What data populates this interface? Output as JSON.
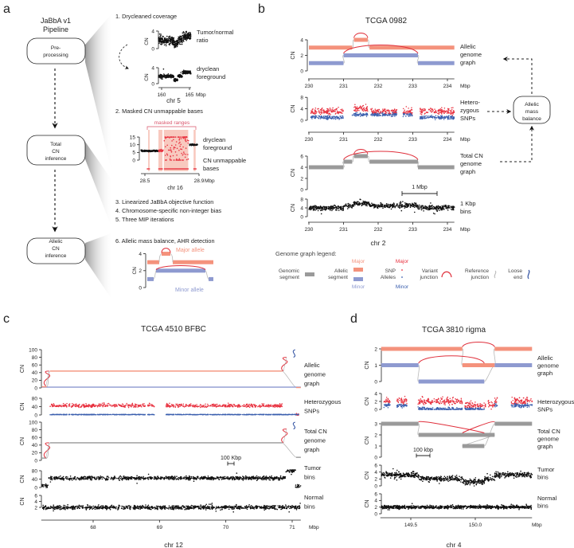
{
  "panel_labels": {
    "a": "a",
    "b": "b",
    "c": "c",
    "d": "d"
  },
  "colors": {
    "major_segment": "#F4927C",
    "minor_segment": "#8E9AD0",
    "variant_junction": "#E0303C",
    "snp_major": "#E8313F",
    "snp_minor": "#3B5FAE",
    "genomic_segment": "#9A9A9A",
    "reference_junction": "#B8B8B8",
    "loose_end": "#2E4FA0",
    "masked_fill": "#F8C9BF",
    "masked_label": "#D9536A",
    "bins": "#111111"
  },
  "panel_a": {
    "title": [
      "JaBbA v1",
      "Pipeline"
    ],
    "boxes": [
      {
        "lines": [
          "Pre-",
          "processing"
        ]
      },
      {
        "lines": [
          "Total",
          "CN",
          "inference"
        ]
      },
      {
        "lines": [
          "Allelic",
          "CN",
          "inference"
        ]
      }
    ],
    "steps": [
      "1. Drycleaned coverage",
      "2. Masked CN unmappable bases",
      "3. Linearized JaBbA objective function",
      "4. Chromosome-specific non-integer bias",
      "5. Three MIP iterations",
      "6. Allelic mass balance, AHR detection"
    ],
    "step1": {
      "ylabel": "CN",
      "yticks": [
        0,
        4
      ],
      "top_label": [
        "Tumor/normal",
        "ratio"
      ],
      "bottom_label": [
        "dryclean",
        "foreground"
      ],
      "xticks": [
        "160",
        "165"
      ],
      "xunit": "Mbp",
      "chrom": "chr 5",
      "profile": [
        [
          159.4,
          162.2,
          1.9
        ],
        [
          162.2,
          162.9,
          0.9
        ],
        [
          162.9,
          163.7,
          1.9
        ],
        [
          163.7,
          165.3,
          2.8
        ]
      ]
    },
    "step2": {
      "masked_label": "masked ranges",
      "yticks": [
        0,
        5,
        10,
        15
      ],
      "labels": [
        "dryclean",
        "foreground",
        "CN unmappable",
        "bases"
      ],
      "xticks": [
        "28.5",
        "28.9"
      ],
      "xunit": "Mbp",
      "chrom": "chr 16",
      "masked_ranges_mbp": [
        [
          28.524,
          28.535
        ],
        [
          28.6,
          28.63
        ],
        [
          28.64,
          28.82
        ],
        [
          28.86,
          28.875
        ]
      ]
    },
    "step6": {
      "ylabel": "CN",
      "yticks": [
        0,
        2,
        4
      ],
      "major_label": "Major allele",
      "minor_label": "Minor allele"
    }
  },
  "panel_b_extra": {
    "mass_balance_box": [
      "Allelic",
      "mass",
      "balance"
    ],
    "scale_bar": "1 Mbp",
    "legend": {
      "title": "Genome graph legend:",
      "genomic_segment": [
        "Genomic",
        "segment"
      ],
      "allelic_segment": [
        "Allelic",
        "segment"
      ],
      "snp_alleles": [
        "SNP",
        "Alleles"
      ],
      "variant_junction": [
        "Variant",
        "junction"
      ],
      "reference_junction": [
        "Reference",
        "junction"
      ],
      "loose_end": [
        "Loose",
        "end"
      ],
      "major": "Major",
      "minor": "Minor"
    }
  },
  "chart_data": [
    {
      "panel": "b",
      "type": "scatter",
      "title": "TCGA 0982",
      "xlabel": "chr 2",
      "xunit": "Mbp",
      "xlim": [
        230,
        234.2
      ],
      "xticks": [
        230,
        231,
        232,
        233,
        234
      ],
      "tracks": {
        "allelic": {
          "label": [
            "Allelic",
            "genome",
            "graph"
          ],
          "ylabel": "CN",
          "yticks": [
            0,
            2,
            4
          ],
          "major": [
            [
              230,
              231.25,
              3
            ],
            [
              231.3,
              231.7,
              4
            ],
            [
              231.75,
              234.2,
              3
            ]
          ],
          "minor": [
            [
              230,
              231,
              1
            ],
            [
              231,
              233.15,
              2
            ],
            [
              233.15,
              234.2,
              1
            ]
          ],
          "variant_junctions": [
            [
              231.3,
              4,
              231.7,
              4
            ],
            [
              231.0,
              2,
              233.15,
              2
            ]
          ]
        },
        "snps": {
          "label": [
            "Hetero-",
            "zygous",
            "SNPs"
          ],
          "ylabel": "CN",
          "yticks": [
            0,
            4,
            8
          ],
          "ranges": [
            [
              230.05,
              231.0
            ],
            [
              231.25,
              231.7
            ],
            [
              231.78,
              232.55
            ],
            [
              232.72,
              233.0
            ],
            [
              233.2,
              234.2
            ]
          ]
        },
        "total": {
          "label": [
            "Total CN",
            "genome",
            "graph"
          ],
          "ylabel": "CN",
          "yticks": [
            0,
            2,
            4,
            6
          ],
          "segments": [
            [
              230,
              231,
              4
            ],
            [
              231,
              231.25,
              5
            ],
            [
              231.3,
              231.7,
              6
            ],
            [
              231.75,
              233.15,
              5
            ],
            [
              233.15,
              234.2,
              4
            ]
          ],
          "variant_junctions": [
            [
              231.0,
              5,
              233.15,
              5
            ],
            [
              231.3,
              6,
              231.7,
              6
            ]
          ]
        },
        "tumor": {
          "label": [
            "1 Kbp",
            "bins"
          ],
          "ylabel": "CN",
          "yticks": [
            0,
            4,
            8
          ],
          "profile": [
            [
              230,
              231,
              4
            ],
            [
              231,
              231.3,
              5
            ],
            [
              231.3,
              231.75,
              6
            ],
            [
              231.75,
              233.15,
              5
            ],
            [
              233.15,
              234.2,
              4
            ]
          ]
        }
      }
    },
    {
      "panel": "c",
      "type": "scatter",
      "title": "TCGA 4510 BFBC",
      "xlabel": "chr 12",
      "xunit": "Mbp",
      "xlim": [
        67.23,
        71.13
      ],
      "xticks": [
        68,
        69,
        70,
        71
      ],
      "scale_bar": "100 Kbp",
      "tracks": {
        "allelic": {
          "label": [
            "Allelic",
            "genome",
            "graph"
          ],
          "ylabel": "CN",
          "yticks": [
            0,
            20,
            40,
            60,
            80,
            100
          ],
          "major": [
            [
              67.23,
              67.3,
              3
            ],
            [
              67.35,
              70.85,
              44
            ],
            [
              71.06,
              71.13,
              1
            ]
          ],
          "minor": [
            [
              67.23,
              71.13,
              2
            ]
          ],
          "fold_back_junctions": [
            [
              67.3,
              5,
              44
            ],
            [
              70.88,
              44,
              80
            ]
          ],
          "loose_ends": [
            [
              71.02,
              80,
              100
            ]
          ]
        },
        "snps": {
          "label": [
            "Heterozygous",
            "SNPs"
          ],
          "ylabel": "CN",
          "yticks": [
            0,
            40,
            80
          ],
          "ranges": [
            [
              67.35,
              68.92
            ],
            [
              69.1,
              71.1
            ]
          ]
        },
        "total": {
          "label": [
            "Total CN",
            "genome",
            "graph"
          ],
          "ylabel": "CN",
          "yticks": [
            0,
            20,
            40,
            60,
            80,
            100
          ],
          "segments": [
            [
              67.23,
              67.3,
              6
            ],
            [
              67.35,
              70.85,
              46
            ],
            [
              71.06,
              71.13,
              8
            ]
          ],
          "fold_back_junctions": [
            [
              67.3,
              6,
              46
            ],
            [
              70.88,
              46,
              82
            ]
          ],
          "loose_ends": [
            [
              71.02,
              82,
              100
            ]
          ]
        },
        "tumor": {
          "label": [
            "Tumor",
            "bins"
          ],
          "ylabel": "CN",
          "yticks": [
            0,
            40,
            80
          ],
          "profile": [
            [
              67.23,
              67.33,
              6
            ],
            [
              67.33,
              70.9,
              45
            ],
            [
              70.9,
              71.05,
              80
            ],
            [
              71.05,
              71.13,
              6
            ]
          ]
        },
        "normal": {
          "label": [
            "Normal",
            "bins"
          ],
          "ylabel": "CN",
          "yticks": [
            2,
            4,
            6
          ],
          "profile": [
            [
              67.23,
              71.13,
              2
            ]
          ]
        }
      }
    },
    {
      "panel": "d",
      "type": "scatter",
      "title": "TCGA 3810 rigma",
      "xlabel": "chr 4",
      "xunit": "Mbp",
      "xlim": [
        149.27,
        150.44
      ],
      "xticks": [
        "149.5",
        "150.0"
      ],
      "scale_bar": "100 kbp",
      "tracks": {
        "allelic": {
          "label": [
            "Allelic",
            "genome",
            "graph"
          ],
          "ylabel": "CN",
          "yticks": [
            0,
            1,
            2
          ],
          "major": [
            [
              149.27,
              149.9,
              2
            ],
            [
              149.9,
              150.15,
              1
            ],
            [
              150.15,
              150.44,
              2
            ]
          ],
          "minor": [
            [
              149.27,
              149.56,
              1
            ],
            [
              149.56,
              150.07,
              0
            ],
            [
              150.15,
              150.44,
              1
            ]
          ],
          "variant_junctions": [
            [
              149.56,
              1,
              150.07,
              1
            ],
            [
              149.9,
              2,
              150.15,
              2
            ]
          ]
        },
        "snps": {
          "label": [
            "Heterozygous",
            "SNPs"
          ],
          "ylabel": "CN",
          "yticks": [
            0,
            2,
            4
          ],
          "ranges": [
            [
              149.29,
              149.34
            ],
            [
              149.39,
              149.47
            ],
            [
              149.55,
              149.9
            ],
            [
              149.92,
              150.08
            ],
            [
              150.1,
              150.17
            ],
            [
              150.28,
              150.44
            ]
          ]
        },
        "total": {
          "label": [
            "Total CN",
            "genome",
            "graph"
          ],
          "ylabel": "CN",
          "yticks": [
            0,
            1,
            2,
            3
          ],
          "segments": [
            [
              149.27,
              149.56,
              3
            ],
            [
              149.56,
              150.15,
              2
            ],
            [
              149.9,
              150.07,
              1
            ],
            [
              150.15,
              150.44,
              3
            ]
          ],
          "variant_junctions": [
            [
              149.56,
              3,
              150.07,
              2
            ],
            [
              149.9,
              2,
              150.15,
              3
            ]
          ]
        },
        "tumor": {
          "label": [
            "Tumor",
            "bins"
          ],
          "ylabel": "CN",
          "yticks": [
            0,
            2,
            4,
            6
          ],
          "profile": [
            [
              149.27,
              149.56,
              3.2
            ],
            [
              149.56,
              149.9,
              2.1
            ],
            [
              149.9,
              150.07,
              1.2
            ],
            [
              150.07,
              150.15,
              2
            ],
            [
              150.15,
              150.44,
              3.2
            ]
          ]
        },
        "normal": {
          "label": [
            "Normal",
            "bins"
          ],
          "ylabel": "CN",
          "yticks": [
            0,
            2,
            4,
            6
          ],
          "profile": [
            [
              149.27,
              150.44,
              2
            ]
          ]
        }
      }
    }
  ]
}
